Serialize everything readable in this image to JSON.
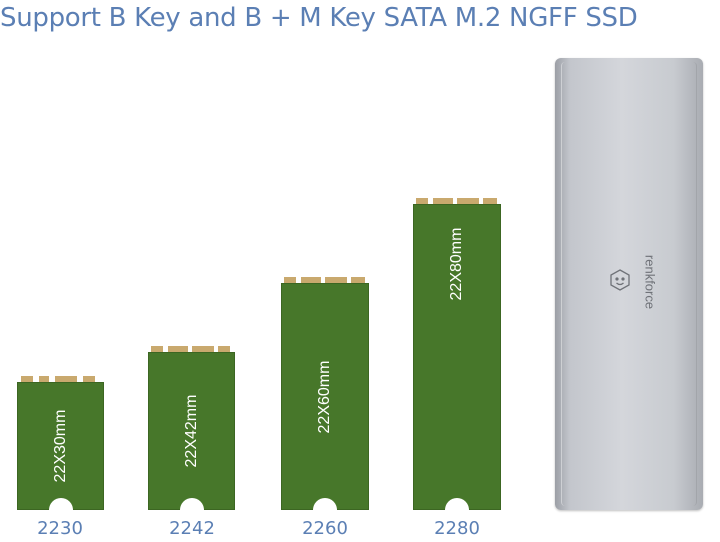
{
  "headline": "Support B Key and B + M Key SATA M.2 NGFF SSD",
  "ssds": [
    {
      "size_label": "22X30mm",
      "form_factor": "2230"
    },
    {
      "size_label": "22X42mm",
      "form_factor": "2242"
    },
    {
      "size_label": "22X60mm",
      "form_factor": "2260"
    },
    {
      "size_label": "22X80mm",
      "form_factor": "2280"
    }
  ],
  "enclosure": {
    "brand": "renkforce"
  },
  "colors": {
    "headline": "#5b7fb4",
    "pcb": "#47772a",
    "contacts": "#c9a96e",
    "enclosure": "#c8cbd0"
  }
}
